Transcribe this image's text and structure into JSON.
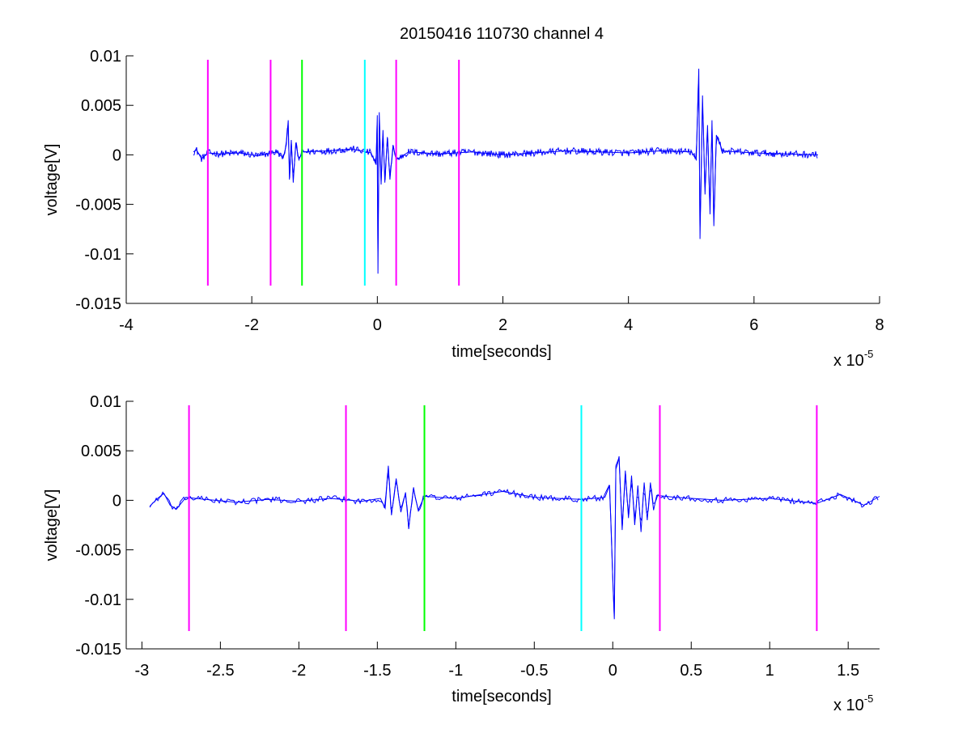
{
  "chart_data": [
    {
      "type": "line",
      "title": "20150416 110730 channel 4",
      "xlabel": "time[seconds]",
      "ylabel": "voltage[V]",
      "x_multiplier": "x 10",
      "x_multiplier_exp": "-5",
      "xlim": [
        -4,
        8
      ],
      "ylim": [
        -0.015,
        0.01
      ],
      "x_ticks": [
        -4,
        -2,
        0,
        2,
        4,
        6,
        8
      ],
      "x_tick_labels": [
        "-4",
        "-2",
        "0",
        "2",
        "4",
        "6",
        "8"
      ],
      "y_ticks": [
        -0.015,
        -0.01,
        -0.005,
        0,
        0.005,
        0.01
      ],
      "y_tick_labels": [
        "-0.015",
        "-0.01",
        "-0.005",
        "0",
        "0.005",
        "0.01"
      ],
      "grid": false,
      "markers": [
        {
          "x": -2.7,
          "color": "#ff00ff"
        },
        {
          "x": -1.7,
          "color": "#ff00ff"
        },
        {
          "x": -1.2,
          "color": "#00ff00"
        },
        {
          "x": -0.2,
          "color": "#00ffff"
        },
        {
          "x": 0.3,
          "color": "#ff00ff"
        },
        {
          "x": 1.3,
          "color": "#ff00ff"
        }
      ],
      "marker_range": [
        -0.0132,
        0.0096
      ],
      "signal": {
        "color": "#0000ff",
        "x_range": [
          -2.93,
          7.02
        ],
        "keypoints": [
          [
            -2.93,
            0.0003
          ],
          [
            -2.88,
            0.0005
          ],
          [
            -2.8,
            -0.0004
          ],
          [
            -2.7,
            0.0002
          ],
          [
            -2.5,
            0.0001
          ],
          [
            -2.2,
            0.0002
          ],
          [
            -1.9,
            -0.0001
          ],
          [
            -1.6,
            0.0003
          ],
          [
            -1.5,
            -0.0003
          ],
          [
            -1.45,
            0.001
          ],
          [
            -1.42,
            0.0035
          ],
          [
            -1.4,
            -0.0025
          ],
          [
            -1.37,
            0.0015
          ],
          [
            -1.34,
            -0.0028
          ],
          [
            -1.3,
            0.0012
          ],
          [
            -1.25,
            -0.0005
          ],
          [
            -1.2,
            0.0003
          ],
          [
            -0.8,
            0.0004
          ],
          [
            -0.4,
            0.0006
          ],
          [
            -0.1,
            0.0002
          ],
          [
            -0.02,
            -0.001
          ],
          [
            0.0,
            0.004
          ],
          [
            0.01,
            -0.012
          ],
          [
            0.03,
            0.0043
          ],
          [
            0.06,
            -0.003
          ],
          [
            0.09,
            0.0025
          ],
          [
            0.12,
            -0.0028
          ],
          [
            0.16,
            0.0018
          ],
          [
            0.2,
            -0.0025
          ],
          [
            0.25,
            0.001
          ],
          [
            0.3,
            -0.0005
          ],
          [
            0.5,
            0.0003
          ],
          [
            1.0,
            0.0001
          ],
          [
            1.5,
            0.0003
          ],
          [
            2.0,
            0.0
          ],
          [
            3.0,
            0.0004
          ],
          [
            4.0,
            0.0002
          ],
          [
            4.5,
            0.0004
          ],
          [
            5.0,
            0.0003
          ],
          [
            5.08,
            -0.0005
          ],
          [
            5.12,
            0.0087
          ],
          [
            5.14,
            -0.0085
          ],
          [
            5.18,
            0.006
          ],
          [
            5.22,
            -0.004
          ],
          [
            5.26,
            0.003
          ],
          [
            5.3,
            -0.006
          ],
          [
            5.33,
            0.0035
          ],
          [
            5.36,
            -0.0072
          ],
          [
            5.4,
            0.002
          ],
          [
            5.5,
            0.0004
          ],
          [
            6.0,
            0.0002
          ],
          [
            6.5,
            0.0001
          ],
          [
            7.02,
            0.0
          ]
        ]
      }
    },
    {
      "type": "line",
      "title": "",
      "xlabel": "time[seconds]",
      "ylabel": "voltage[V]",
      "x_multiplier": "x 10",
      "x_multiplier_exp": "-5",
      "xlim": [
        -3.0,
        1.7
      ],
      "ylim": [
        -0.015,
        0.01
      ],
      "x_ticks": [
        -3,
        -2.5,
        -2,
        -1.5,
        -1,
        -0.5,
        0,
        0.5,
        1,
        1.5
      ],
      "x_tick_labels": [
        "-3",
        "-2.5",
        "-2",
        "-1.5",
        "-1",
        "-0.5",
        "0",
        "0.5",
        "1",
        "1.5"
      ],
      "y_ticks": [
        -0.015,
        -0.01,
        -0.005,
        0,
        0.005,
        0.01
      ],
      "y_tick_labels": [
        "-0.015",
        "-0.01",
        "-0.005",
        "0",
        "0.005",
        "0.01"
      ],
      "grid": false,
      "markers": [
        {
          "x": -2.7,
          "color": "#ff00ff"
        },
        {
          "x": -1.7,
          "color": "#ff00ff"
        },
        {
          "x": -1.2,
          "color": "#00ff00"
        },
        {
          "x": -0.2,
          "color": "#00ffff"
        },
        {
          "x": 0.3,
          "color": "#ff00ff"
        },
        {
          "x": 1.3,
          "color": "#ff00ff"
        }
      ],
      "marker_range": [
        -0.0132,
        0.0096
      ],
      "signal": {
        "color": "#0000ff",
        "x_range": [
          -2.95,
          1.7
        ],
        "keypoints": [
          [
            -2.95,
            -0.0006
          ],
          [
            -2.9,
            0.0002
          ],
          [
            -2.86,
            0.0007
          ],
          [
            -2.82,
            -0.0005
          ],
          [
            -2.78,
            -0.0009
          ],
          [
            -2.72,
            0.0003
          ],
          [
            -2.6,
            0.0001
          ],
          [
            -2.4,
            -0.0002
          ],
          [
            -2.2,
            0.0001
          ],
          [
            -2.0,
            -0.0001
          ],
          [
            -1.8,
            0.0002
          ],
          [
            -1.6,
            -0.0001
          ],
          [
            -1.48,
            0.0002
          ],
          [
            -1.45,
            -0.0008
          ],
          [
            -1.43,
            0.0035
          ],
          [
            -1.41,
            -0.0015
          ],
          [
            -1.38,
            0.0022
          ],
          [
            -1.35,
            -0.0012
          ],
          [
            -1.32,
            0.0008
          ],
          [
            -1.3,
            -0.0028
          ],
          [
            -1.27,
            0.0012
          ],
          [
            -1.24,
            -0.001
          ],
          [
            -1.2,
            0.0004
          ],
          [
            -1.0,
            0.0002
          ],
          [
            -0.7,
            0.0009
          ],
          [
            -0.5,
            0.0003
          ],
          [
            -0.2,
            0.0001
          ],
          [
            -0.05,
            0.0003
          ],
          [
            -0.02,
            0.0015
          ],
          [
            0.0,
            -0.008
          ],
          [
            0.01,
            -0.012
          ],
          [
            0.02,
            0.0035
          ],
          [
            0.04,
            0.0043
          ],
          [
            0.06,
            -0.003
          ],
          [
            0.08,
            0.003
          ],
          [
            0.1,
            -0.0018
          ],
          [
            0.12,
            0.0025
          ],
          [
            0.14,
            -0.0025
          ],
          [
            0.16,
            0.0015
          ],
          [
            0.18,
            -0.0032
          ],
          [
            0.2,
            0.0018
          ],
          [
            0.22,
            -0.002
          ],
          [
            0.24,
            0.0018
          ],
          [
            0.26,
            -0.001
          ],
          [
            0.28,
            0.0005
          ],
          [
            0.4,
            0.0003
          ],
          [
            0.7,
            0.0
          ],
          [
            1.0,
            0.0002
          ],
          [
            1.3,
            -0.0003
          ],
          [
            1.45,
            0.0006
          ],
          [
            1.6,
            -0.0005
          ],
          [
            1.7,
            0.0004
          ]
        ]
      }
    }
  ]
}
